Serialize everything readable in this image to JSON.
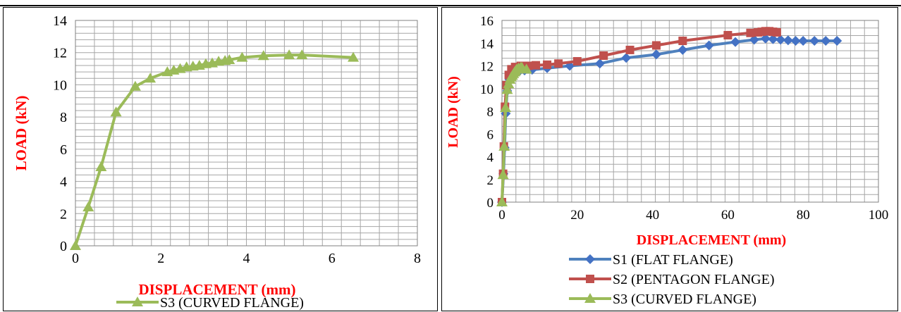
{
  "colors": {
    "s1": "#4472c4",
    "s1_line": "#4f81bd",
    "s2": "#c0504d",
    "s3": "#9bbb59",
    "axis_title": "#ff0000",
    "grid": "#a6a6a6",
    "header_text": "#1a5fa0"
  },
  "chart_data": [
    {
      "type": "line",
      "xlabel": "DISPLACEMENT (mm)",
      "ylabel": "LOAD (kN)",
      "xlim": [
        0,
        8
      ],
      "ylim": [
        0,
        14
      ],
      "xticks": [
        0,
        2,
        4,
        6,
        8
      ],
      "yticks": [
        0,
        2,
        4,
        6,
        8,
        10,
        12,
        14
      ],
      "grid": true,
      "legend_position": "bottom",
      "series": [
        {
          "name": "S3 (CURVED FLANGE)",
          "color": "#9bbb59",
          "marker": "triangle",
          "points": [
            [
              0,
              0
            ],
            [
              0.3,
              2.4
            ],
            [
              0.6,
              4.9
            ],
            [
              0.95,
              8.3
            ],
            [
              1.4,
              9.9
            ],
            [
              1.75,
              10.4
            ],
            [
              2.15,
              10.8
            ],
            [
              2.3,
              10.9
            ],
            [
              2.45,
              11.0
            ],
            [
              2.6,
              11.1
            ],
            [
              2.75,
              11.15
            ],
            [
              2.9,
              11.2
            ],
            [
              3.05,
              11.3
            ],
            [
              3.2,
              11.35
            ],
            [
              3.35,
              11.45
            ],
            [
              3.5,
              11.5
            ],
            [
              3.6,
              11.55
            ],
            [
              3.9,
              11.7
            ],
            [
              4.4,
              11.8
            ],
            [
              5.0,
              11.85
            ],
            [
              5.3,
              11.85
            ],
            [
              6.5,
              11.7
            ]
          ]
        }
      ]
    },
    {
      "type": "line",
      "xlabel": "DISPLACEMENT (mm)",
      "ylabel": "LOAD (kN)",
      "xlim": [
        0,
        100
      ],
      "ylim": [
        0,
        16
      ],
      "xticks": [
        0,
        20,
        40,
        60,
        80,
        100
      ],
      "yticks": [
        0,
        2,
        4,
        6,
        8,
        10,
        12,
        14,
        16
      ],
      "grid": true,
      "legend_position": "bottom",
      "series": [
        {
          "name": "S1 (FLAT FLANGE)",
          "color": "#4472c4",
          "marker": "diamond",
          "points": [
            [
              0,
              0
            ],
            [
              0.4,
              2.5
            ],
            [
              0.7,
              4.8
            ],
            [
              1.0,
              7.8
            ],
            [
              1.4,
              9.8
            ],
            [
              2.0,
              10.8
            ],
            [
              3.0,
              11.3
            ],
            [
              4.5,
              11.5
            ],
            [
              6,
              11.6
            ],
            [
              8,
              11.65
            ],
            [
              12,
              11.8
            ],
            [
              18,
              12.0
            ],
            [
              26,
              12.2
            ],
            [
              33,
              12.7
            ],
            [
              41,
              13.0
            ],
            [
              48,
              13.4
            ],
            [
              55,
              13.8
            ],
            [
              62,
              14.1
            ],
            [
              67,
              14.3
            ],
            [
              70,
              14.4
            ],
            [
              72,
              14.35
            ],
            [
              74,
              14.3
            ],
            [
              76,
              14.25
            ],
            [
              78,
              14.2
            ],
            [
              80,
              14.2
            ],
            [
              83,
              14.2
            ],
            [
              86,
              14.2
            ],
            [
              89,
              14.2
            ]
          ]
        },
        {
          "name": "S2 (PENTAGON FLANGE)",
          "color": "#c0504d",
          "marker": "square",
          "points": [
            [
              0,
              0
            ],
            [
              0.3,
              2.5
            ],
            [
              0.5,
              4.9
            ],
            [
              0.8,
              8.4
            ],
            [
              1.2,
              10.3
            ],
            [
              1.8,
              11.2
            ],
            [
              2.5,
              11.7
            ],
            [
              3.5,
              11.9
            ],
            [
              5,
              12.0
            ],
            [
              7,
              12.0
            ],
            [
              9,
              12.05
            ],
            [
              12,
              12.1
            ],
            [
              15,
              12.2
            ],
            [
              20,
              12.4
            ],
            [
              27,
              12.9
            ],
            [
              34,
              13.4
            ],
            [
              41,
              13.8
            ],
            [
              48,
              14.2
            ],
            [
              60,
              14.7
            ],
            [
              66,
              14.9
            ],
            [
              68,
              14.95
            ],
            [
              69,
              15.0
            ],
            [
              70,
              15.05
            ],
            [
              71,
              15.05
            ],
            [
              72,
              15.0
            ],
            [
              73,
              14.95
            ]
          ]
        },
        {
          "name": "S3 (CURVED FLANGE)",
          "color": "#9bbb59",
          "marker": "triangle",
          "points": [
            [
              0,
              0
            ],
            [
              0.3,
              2.4
            ],
            [
              0.6,
              4.9
            ],
            [
              0.95,
              8.3
            ],
            [
              1.4,
              9.9
            ],
            [
              1.75,
              10.4
            ],
            [
              2.15,
              10.8
            ],
            [
              2.45,
              11.0
            ],
            [
              2.75,
              11.15
            ],
            [
              3.05,
              11.3
            ],
            [
              3.35,
              11.45
            ],
            [
              3.6,
              11.55
            ],
            [
              3.9,
              11.7
            ],
            [
              4.4,
              11.8
            ],
            [
              5.0,
              11.85
            ],
            [
              5.3,
              11.85
            ],
            [
              6.5,
              11.7
            ]
          ]
        }
      ]
    }
  ]
}
